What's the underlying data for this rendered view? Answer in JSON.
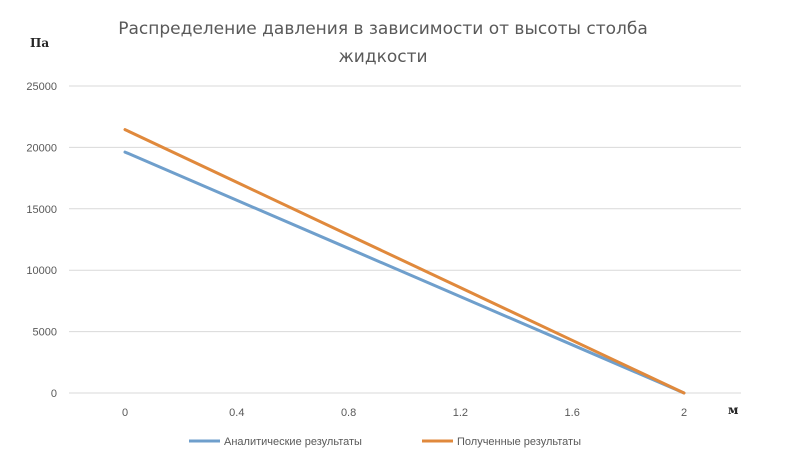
{
  "chart_data": {
    "type": "line",
    "title_lines": [
      "Распределение давления в зависимости от высоты столба",
      "жидкости"
    ],
    "ylabel": "Па",
    "xlabel": "м",
    "x": [
      0,
      0.4,
      0.8,
      1.2,
      1.6,
      2
    ],
    "x_tick_labels": [
      "0",
      "0.4",
      "0.8",
      "1.2",
      "1.6",
      "2"
    ],
    "ylim": [
      0,
      25000
    ],
    "y_ticks": [
      0,
      5000,
      10000,
      15000,
      20000,
      25000
    ],
    "y_tick_labels": [
      "0",
      "5000",
      "10000",
      "15000",
      "20000",
      "25000"
    ],
    "grid": true,
    "legend_position": "bottom",
    "series": [
      {
        "name": "Аналитические результаты",
        "color": "#6f9fcc",
        "values": [
          19620,
          15696,
          11772,
          7848,
          3924,
          0
        ]
      },
      {
        "name": "Полученные результаты",
        "color": "#e0893c",
        "values": [
          21450,
          17160,
          12870,
          8580,
          4290,
          0
        ]
      }
    ]
  }
}
